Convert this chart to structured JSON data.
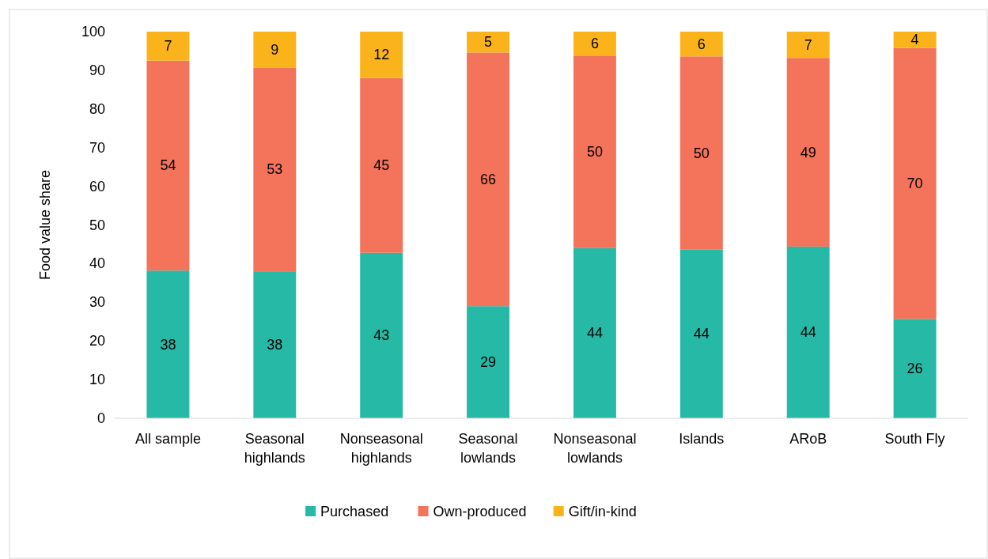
{
  "chart_data": {
    "type": "bar",
    "stacked": true,
    "ylabel": "Food value share",
    "categories": [
      "All sample",
      "Seasonal highlands",
      "Nonseasonal highlands",
      "Seasonal lowlands",
      "Nonseasonal lowlands",
      "Islands",
      "ARoB",
      "South Fly"
    ],
    "series": [
      {
        "name": "Purchased",
        "color": "#26b9a6",
        "values": [
          38.2,
          38,
          42.8,
          29,
          44,
          43.6,
          44.4,
          25.7
        ],
        "value_labels": [
          "38",
          "38",
          "43",
          "29",
          "44",
          "44",
          "44",
          "26"
        ]
      },
      {
        "name": "Own-produced",
        "color": "#f3735b",
        "values": [
          54.3,
          52.7,
          45.2,
          65.6,
          49.8,
          50,
          48.8,
          70.1
        ],
        "value_labels": [
          "54",
          "53",
          "45",
          "66",
          "50",
          "50",
          "49",
          "70"
        ]
      },
      {
        "name": "Gift/in-kind",
        "color": "#fbb31c",
        "values": [
          7.5,
          9.3,
          12,
          5.4,
          6.2,
          6.4,
          6.8,
          4.2
        ],
        "value_labels": [
          "7",
          "9",
          "12",
          "5",
          "6",
          "6",
          "7",
          "4"
        ]
      }
    ],
    "ylim": [
      0,
      100
    ],
    "yticks": [
      0,
      10,
      20,
      30,
      40,
      50,
      60,
      70,
      80,
      90,
      100
    ],
    "grid": false,
    "legend": "bottom"
  }
}
